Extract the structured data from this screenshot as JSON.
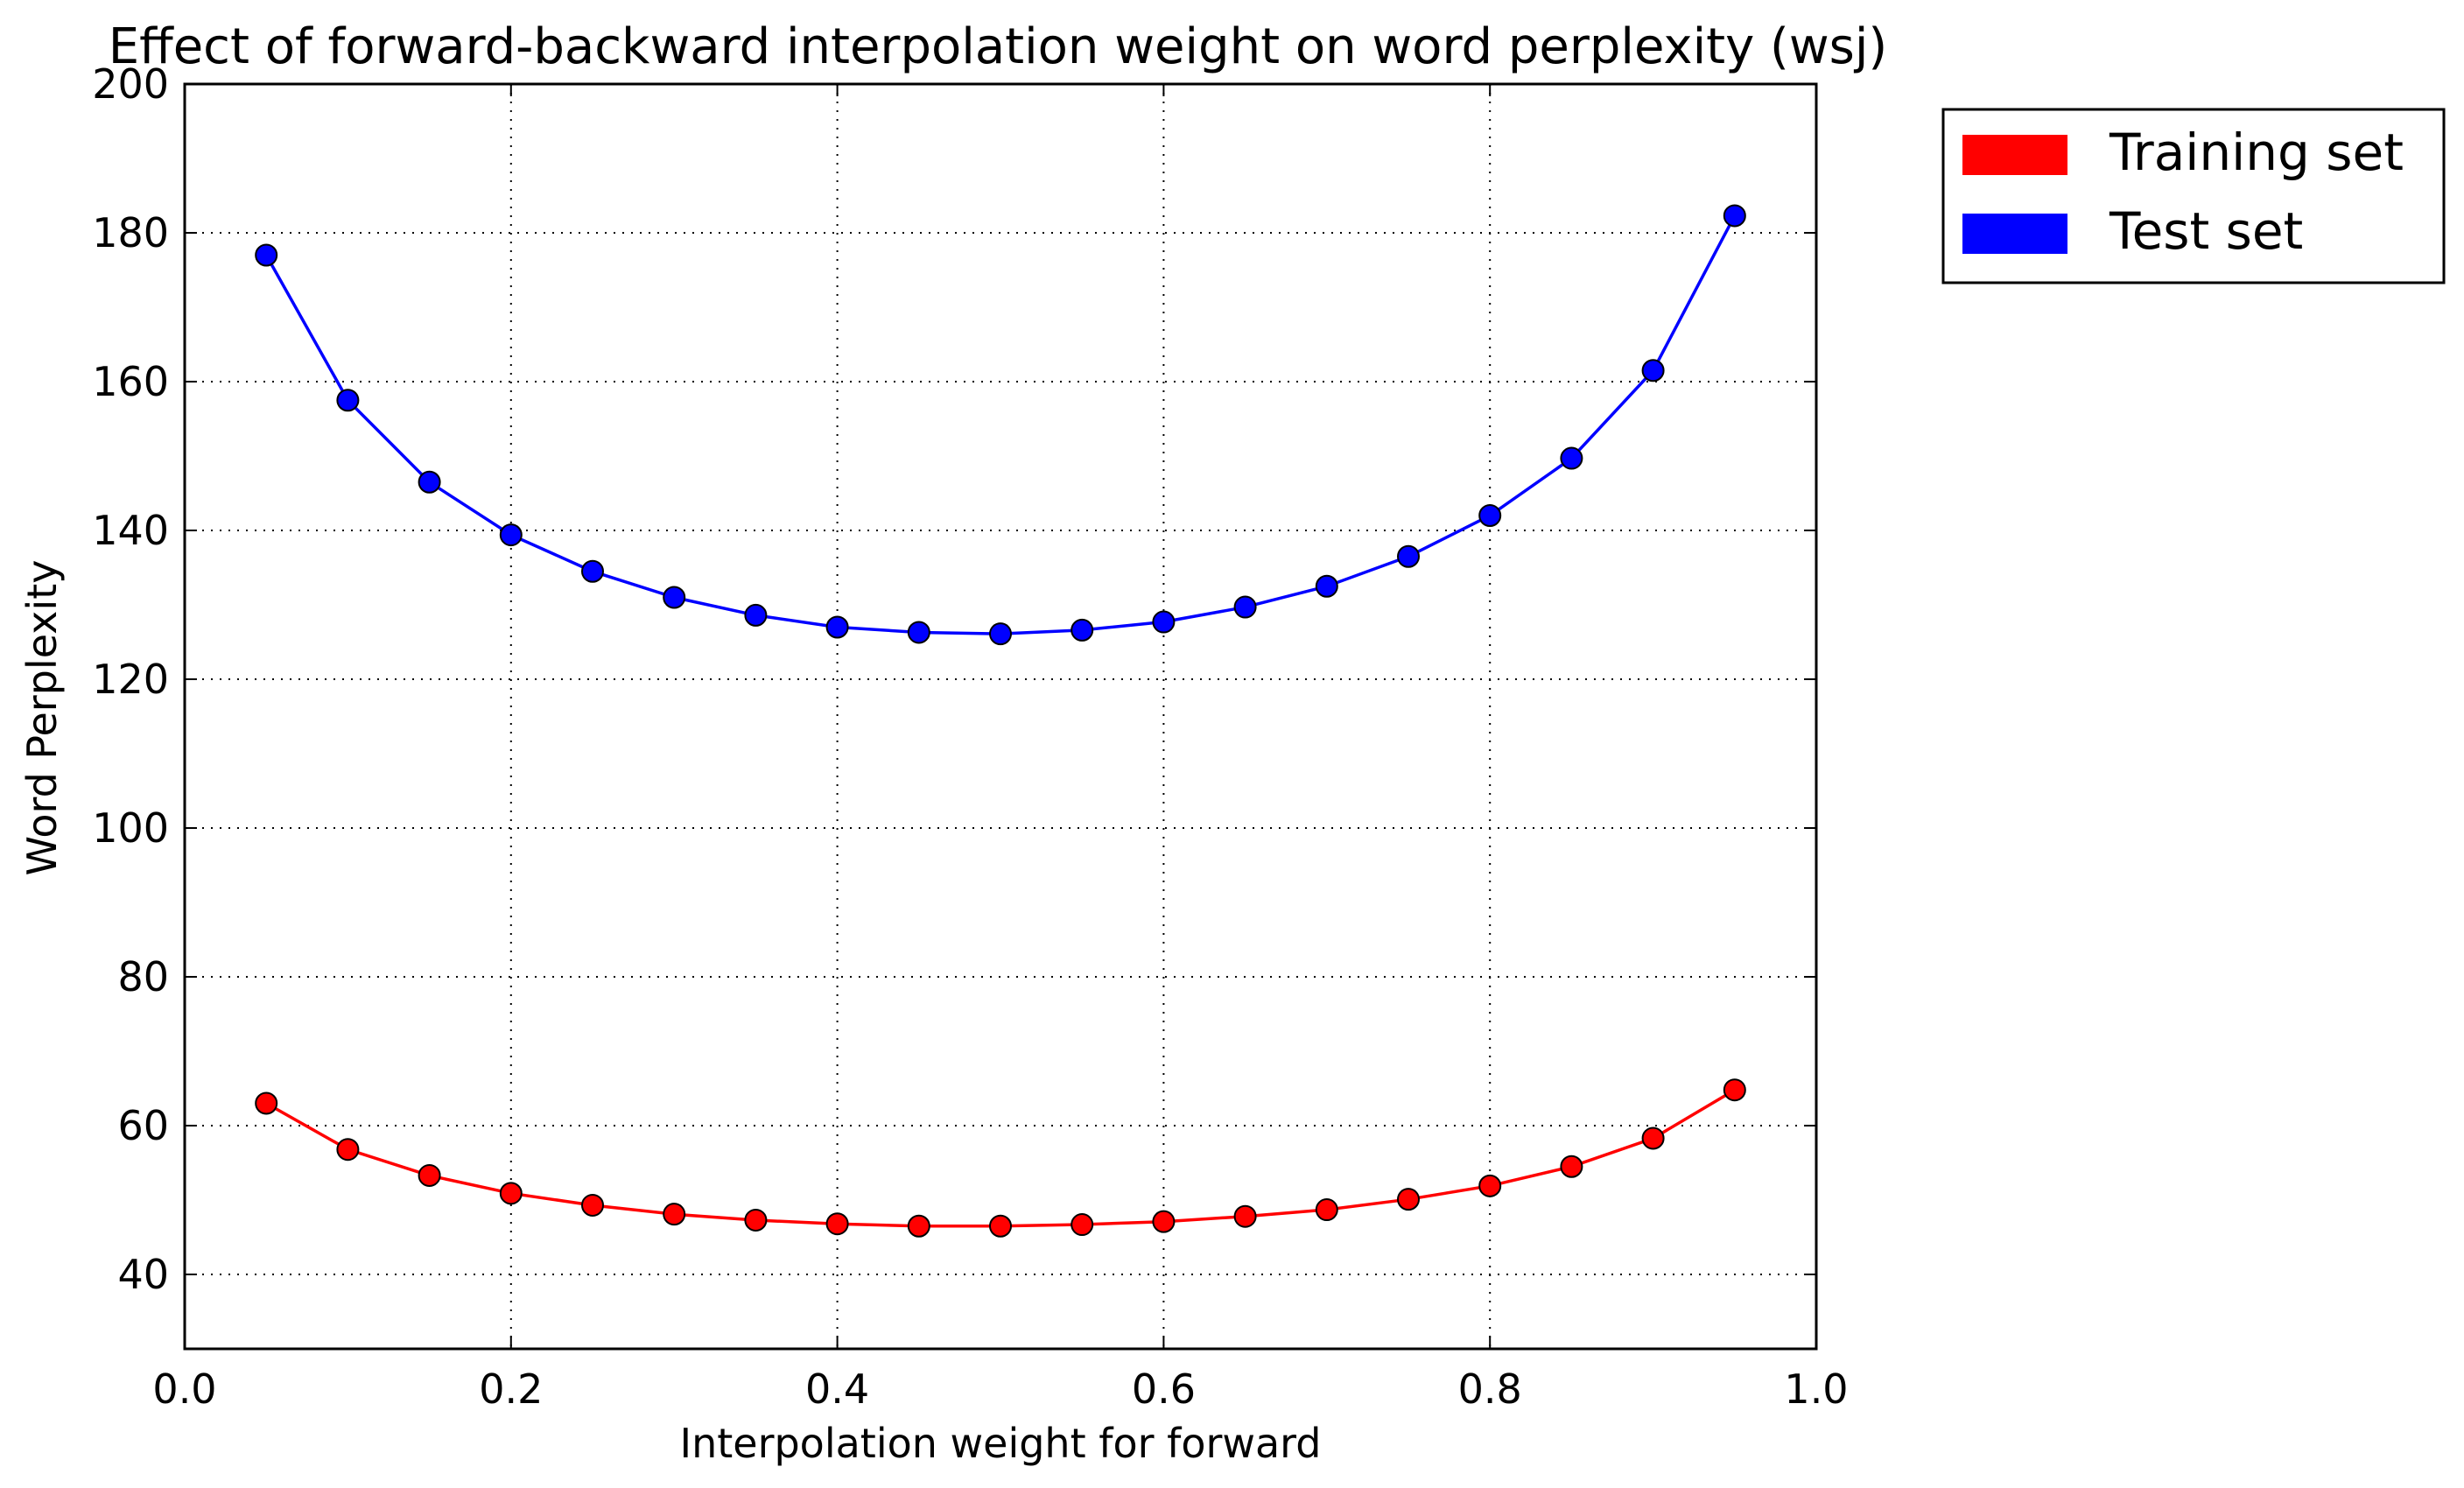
{
  "chart_data": {
    "type": "line",
    "title": "Effect of forward-backward interpolation weight on word perplexity (wsj)",
    "xlabel": "Interpolation weight for forward",
    "ylabel": "Word Perplexity",
    "xlim": [
      0.0,
      1.0
    ],
    "ylim": [
      30,
      200
    ],
    "x_ticks": [
      0.0,
      0.2,
      0.4,
      0.6,
      0.8,
      1.0
    ],
    "x_tick_labels": [
      "0.0",
      "0.2",
      "0.4",
      "0.6",
      "0.8",
      "1.0"
    ],
    "y_ticks": [
      40,
      60,
      80,
      100,
      120,
      140,
      160,
      180,
      200
    ],
    "y_tick_labels": [
      "40",
      "60",
      "80",
      "100",
      "120",
      "140",
      "160",
      "180",
      "200"
    ],
    "grid": true,
    "legend_position": "outside-top-right",
    "x": [
      0.05,
      0.1,
      0.15,
      0.2,
      0.25,
      0.3,
      0.35,
      0.4,
      0.45,
      0.5,
      0.55,
      0.6,
      0.65,
      0.7,
      0.75,
      0.8,
      0.85,
      0.9,
      0.95
    ],
    "series": [
      {
        "name": "Training set",
        "color": "#ff0000",
        "values": [
          63.0,
          56.8,
          53.3,
          50.9,
          49.3,
          48.1,
          47.3,
          46.8,
          46.5,
          46.5,
          46.7,
          47.1,
          47.8,
          48.7,
          50.1,
          51.9,
          54.5,
          58.3,
          64.8
        ]
      },
      {
        "name": "Test set",
        "color": "#0000ff",
        "values": [
          177.0,
          157.5,
          146.5,
          139.4,
          134.5,
          131.0,
          128.6,
          127.0,
          126.3,
          126.1,
          126.6,
          127.7,
          129.7,
          132.5,
          136.5,
          142.0,
          149.7,
          161.5,
          182.3
        ]
      }
    ]
  }
}
